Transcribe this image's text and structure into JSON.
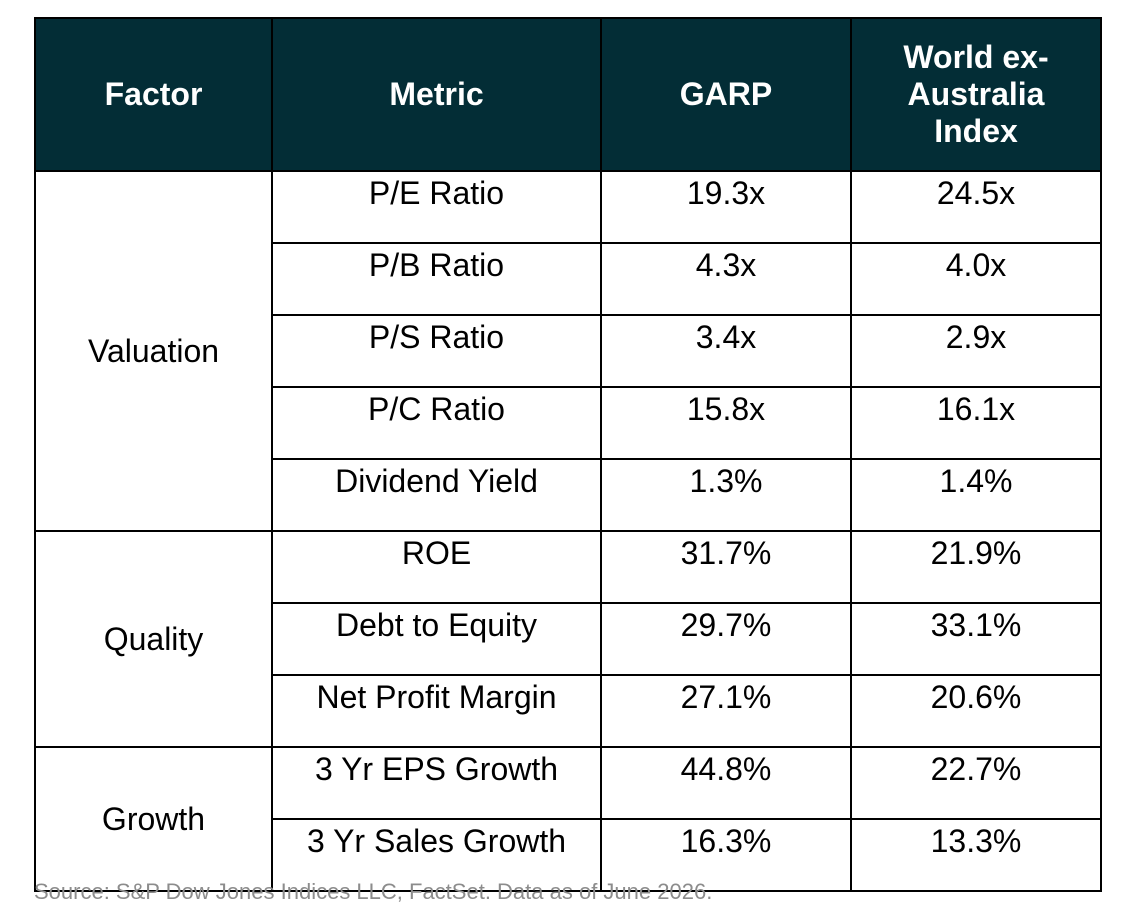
{
  "table": {
    "headers": {
      "factor": "Factor",
      "metric": "Metric",
      "garp": "GARP",
      "index_line1": "World ex-",
      "index_line2": "Australia",
      "index_line3": "Index"
    },
    "groups": [
      {
        "factor": "Valuation",
        "rows": [
          {
            "metric": "P/E Ratio",
            "garp": "19.3x",
            "index": "24.5x"
          },
          {
            "metric": "P/B Ratio",
            "garp": "4.3x",
            "index": "4.0x"
          },
          {
            "metric": "P/S Ratio",
            "garp": "3.4x",
            "index": "2.9x"
          },
          {
            "metric": "P/C Ratio",
            "garp": "15.8x",
            "index": "16.1x"
          },
          {
            "metric": "Dividend Yield",
            "garp": "1.3%",
            "index": "1.4%"
          }
        ]
      },
      {
        "factor": "Quality",
        "rows": [
          {
            "metric": "ROE",
            "garp": "31.7%",
            "index": "21.9%"
          },
          {
            "metric": "Debt to Equity",
            "garp": "29.7%",
            "index": "33.1%"
          },
          {
            "metric": "Net Profit Margin",
            "garp": "27.1%",
            "index": "20.6%"
          }
        ]
      },
      {
        "factor": "Growth",
        "rows": [
          {
            "metric": "3 Yr EPS Growth",
            "garp": "44.8%",
            "index": "22.7%"
          },
          {
            "metric": "3 Yr Sales Growth",
            "garp": "16.3%",
            "index": "13.3%"
          }
        ]
      }
    ]
  },
  "source": "Source: S&P Dow Jones Indices LLC, FactSet. Data as of June 2026.",
  "colors": {
    "header_bg": "#032d36",
    "header_text": "#ffffff",
    "border": "#000000",
    "source_text": "#8c8c8c"
  }
}
